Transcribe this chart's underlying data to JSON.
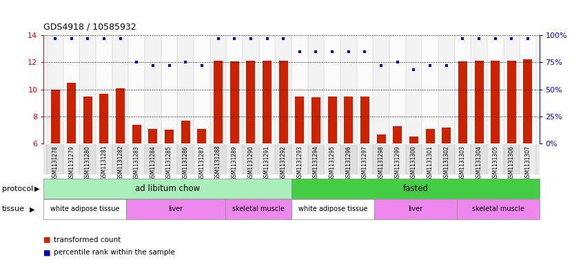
{
  "title": "GDS4918 / 10585932",
  "samples": [
    "GSM1131278",
    "GSM1131279",
    "GSM1131280",
    "GSM1131281",
    "GSM1131282",
    "GSM1131283",
    "GSM1131284",
    "GSM1131285",
    "GSM1131286",
    "GSM1131287",
    "GSM1131288",
    "GSM1131289",
    "GSM1131290",
    "GSM1131291",
    "GSM1131292",
    "GSM1131293",
    "GSM1131294",
    "GSM1131295",
    "GSM1131296",
    "GSM1131297",
    "GSM1131298",
    "GSM1131299",
    "GSM1131300",
    "GSM1131301",
    "GSM1131302",
    "GSM1131303",
    "GSM1131304",
    "GSM1131305",
    "GSM1131306",
    "GSM1131307"
  ],
  "bar_values": [
    10.0,
    10.5,
    9.5,
    9.7,
    10.1,
    7.4,
    7.1,
    7.05,
    7.7,
    7.1,
    12.1,
    12.05,
    12.1,
    12.1,
    12.1,
    9.5,
    9.4,
    9.5,
    9.5,
    9.5,
    6.7,
    7.3,
    6.5,
    7.1,
    7.2,
    12.05,
    12.1,
    12.1,
    12.1,
    12.2
  ],
  "dot_values": [
    97,
    97,
    97,
    97,
    97,
    75,
    72,
    72,
    75,
    72,
    97,
    97,
    97,
    97,
    97,
    85,
    85,
    85,
    85,
    85,
    72,
    75,
    68,
    72,
    72,
    97,
    97,
    97,
    97,
    97
  ],
  "ylim_left": [
    6,
    14
  ],
  "ylim_right": [
    0,
    100
  ],
  "yticks_left": [
    6,
    8,
    10,
    12,
    14
  ],
  "yticks_right": [
    0,
    25,
    50,
    75,
    100
  ],
  "bar_color": "#cc2200",
  "dot_color": "#0000bb",
  "bar_width": 0.55,
  "protocol_groups": [
    {
      "label": "ad libitum chow",
      "start": 0,
      "end": 14,
      "color": "#aaeebb"
    },
    {
      "label": "fasted",
      "start": 15,
      "end": 29,
      "color": "#44cc44"
    }
  ],
  "tissue_groups": [
    {
      "label": "white adipose tissue",
      "start": 0,
      "end": 4,
      "color": "#ffffff"
    },
    {
      "label": "liver",
      "start": 5,
      "end": 10,
      "color": "#ee88ee"
    },
    {
      "label": "skeletal muscle",
      "start": 11,
      "end": 14,
      "color": "#ee88ee"
    },
    {
      "label": "white adipose tissue",
      "start": 15,
      "end": 19,
      "color": "#ffffff"
    },
    {
      "label": "liver",
      "start": 20,
      "end": 24,
      "color": "#ee88ee"
    },
    {
      "label": "skeletal muscle",
      "start": 25,
      "end": 29,
      "color": "#ee88ee"
    }
  ],
  "bg_color": "#ffffff",
  "chart_bg": "#ffffff"
}
